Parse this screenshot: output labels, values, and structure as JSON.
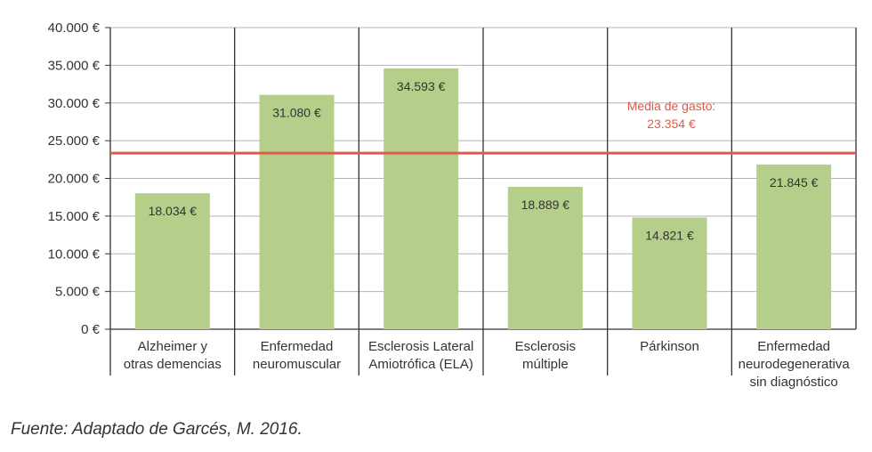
{
  "chart_data": {
    "type": "bar",
    "categories": [
      [
        "Alzheimer y",
        "otras demencias"
      ],
      [
        "Enfermedad",
        "neuromuscular"
      ],
      [
        "Esclerosis Lateral",
        "Amiotrófica (ELA)"
      ],
      [
        "Esclerosis",
        "múltiple"
      ],
      [
        "Párkinson"
      ],
      [
        "Enfermedad",
        "neurodegenerativa",
        "sin diagnóstico"
      ]
    ],
    "values": [
      18034,
      31080,
      34593,
      18889,
      14821,
      21845
    ],
    "value_labels": [
      "18.034 €",
      "31.080 €",
      "34.593 €",
      "18.889 €",
      "14.821 €",
      "21.845 €"
    ],
    "ylim": [
      0,
      40000
    ],
    "yticks": [
      0,
      5000,
      10000,
      15000,
      20000,
      25000,
      30000,
      35000,
      40000
    ],
    "ytick_labels": [
      "0 €",
      "5.000 €",
      "10.000 €",
      "15.000 €",
      "20.000 €",
      "25.000 €",
      "30.000 €",
      "35.000 €",
      "40.000 €"
    ],
    "grid": true,
    "mean": {
      "value": 23354,
      "label_lines": [
        "Media de gasto:",
        "23.354 €"
      ]
    },
    "colors": {
      "bar": "#b5cf8a",
      "mean_line": "#e05a4a",
      "grid": "#b3b3b3",
      "axis": "#333333"
    }
  },
  "source": "Fuente: Adaptado de Garcés, M. 2016."
}
